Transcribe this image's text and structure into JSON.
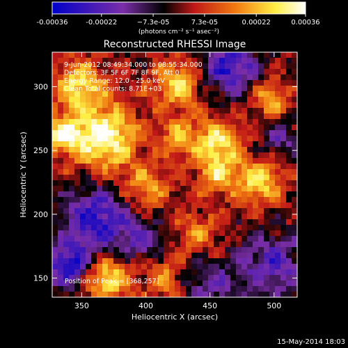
{
  "chart_data": {
    "type": "heatmap",
    "title": "Reconstructed RHESSI Image",
    "xlabel": "Heliocentric X (arcsec)",
    "ylabel": "Heliocentric Y (arcsec)",
    "xlim": [
      327,
      518
    ],
    "ylim": [
      135,
      327
    ],
    "x_ticks": [
      350,
      400,
      450,
      500
    ],
    "y_ticks": [
      150,
      200,
      250,
      300
    ],
    "colorbar": {
      "min": -0.00036,
      "max": 0.00036,
      "tick_values": [
        -0.00036,
        -0.00022,
        -7.3e-05,
        7.3e-05,
        0.00022,
        0.00036
      ],
      "tick_labels": [
        "-0.00036",
        "-0.00022",
        "−7.3e-05",
        "7.3e-05",
        "0.00022",
        "0.00036"
      ],
      "unit_label": "(photons cm⁻² s⁻¹ asec⁻²)",
      "colors": [
        "#0000c8",
        "#7a2ea8",
        "#000000",
        "#c01818",
        "#f07810",
        "#ffee44",
        "#ffffff"
      ]
    },
    "annotations": [
      "9-Jun-2012 08:49:34.000 to 08:55:34.000",
      "Detectors: 3F 5F 6F 7F 8F 9F, Att 0",
      "Energy Range: 12.0 - 25.0 keV",
      "Clean   Total counts: 8.71E+03"
    ],
    "peak_label": "Position of Peak = [368,257]",
    "peak": [
      368,
      257
    ],
    "bright_sources": [
      {
        "x": 368,
        "y": 260,
        "amp": 1.0,
        "sigma": 18
      },
      {
        "x": 348,
        "y": 300,
        "amp": 0.75,
        "sigma": 14
      },
      {
        "x": 335,
        "y": 262,
        "amp": 0.8,
        "sigma": 10
      },
      {
        "x": 425,
        "y": 302,
        "amp": 0.7,
        "sigma": 14
      },
      {
        "x": 400,
        "y": 220,
        "amp": 0.55,
        "sigma": 12
      },
      {
        "x": 455,
        "y": 255,
        "amp": 0.8,
        "sigma": 13
      },
      {
        "x": 488,
        "y": 225,
        "amp": 0.75,
        "sigma": 13
      },
      {
        "x": 455,
        "y": 230,
        "amp": 0.55,
        "sigma": 11
      },
      {
        "x": 497,
        "y": 290,
        "amp": 0.6,
        "sigma": 10
      },
      {
        "x": 370,
        "y": 150,
        "amp": 0.8,
        "sigma": 13
      },
      {
        "x": 440,
        "y": 185,
        "amp": 0.45,
        "sigma": 12
      },
      {
        "x": 415,
        "y": 150,
        "amp": 0.45,
        "sigma": 11
      },
      {
        "x": 425,
        "y": 260,
        "amp": 0.55,
        "sigma": 10
      }
    ],
    "dark_sources": [
      {
        "x": 465,
        "y": 315,
        "amp": -0.8,
        "sigma": 15
      },
      {
        "x": 362,
        "y": 195,
        "amp": -0.8,
        "sigma": 18
      },
      {
        "x": 340,
        "y": 160,
        "amp": -0.85,
        "sigma": 12
      },
      {
        "x": 498,
        "y": 160,
        "amp": -0.6,
        "sigma": 18
      },
      {
        "x": 450,
        "y": 145,
        "amp": -0.45,
        "sigma": 14
      },
      {
        "x": 505,
        "y": 260,
        "amp": -0.4,
        "sigma": 10
      },
      {
        "x": 395,
        "y": 180,
        "amp": -0.45,
        "sigma": 12
      }
    ]
  },
  "footer": {
    "date": "15-May-2014 18:03"
  }
}
